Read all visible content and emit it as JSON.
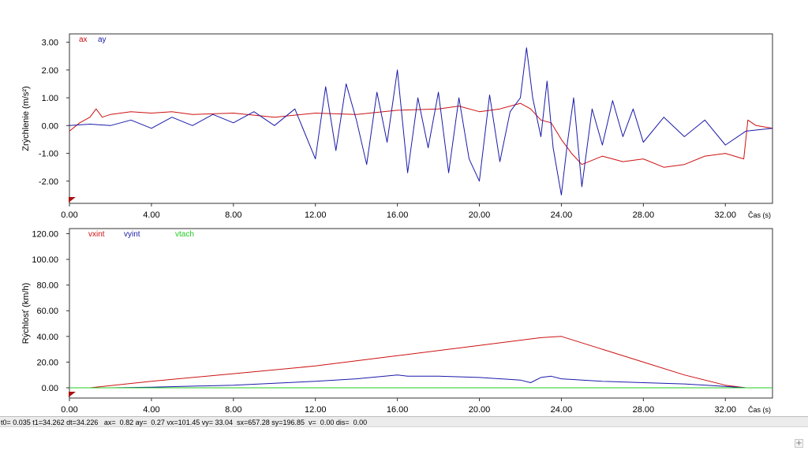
{
  "chart_data": [
    {
      "type": "line",
      "ylabel": "Zrýchlenie  (m/s²)",
      "xlabel": "Čas (s)",
      "xlim": [
        0,
        34.3
      ],
      "ylim": [
        -2.8,
        3.3
      ],
      "xticks": [
        0,
        4,
        8,
        12,
        16,
        20,
        24,
        28,
        32
      ],
      "yticks": [
        -2,
        -1,
        0,
        1,
        2,
        3
      ],
      "xtick_labels": [
        "0.00",
        "4.00",
        "8.00",
        "12.00",
        "16.00",
        "20.00",
        "24.00",
        "28.00",
        "32.00"
      ],
      "ytick_labels": [
        "-2.00",
        "-1.00",
        "0.00",
        "1.00",
        "2.00",
        "3.00"
      ],
      "legend_position": "top-left",
      "series": [
        {
          "name": "ax",
          "color": "#cc1111",
          "x": [
            0,
            0.5,
            1,
            1.3,
            1.6,
            2,
            3,
            4,
            5,
            6,
            8,
            10,
            12,
            14,
            16,
            18,
            19,
            20,
            21,
            22,
            22.5,
            23,
            23.5,
            24,
            24.5,
            25,
            26,
            27,
            28,
            29,
            30,
            31,
            32,
            32.9,
            33.1,
            33.5,
            34.3
          ],
          "y": [
            -0.2,
            0.1,
            0.3,
            0.6,
            0.3,
            0.4,
            0.5,
            0.45,
            0.5,
            0.4,
            0.45,
            0.3,
            0.45,
            0.4,
            0.55,
            0.6,
            0.7,
            0.5,
            0.6,
            0.8,
            0.6,
            0.2,
            0.1,
            -0.5,
            -1.0,
            -1.4,
            -1.1,
            -1.3,
            -1.2,
            -1.5,
            -1.4,
            -1.1,
            -1.0,
            -1.2,
            0.2,
            0.0,
            -0.1
          ]
        },
        {
          "name": "ay",
          "color": "#1a1aaa",
          "x": [
            0,
            1,
            2,
            3,
            4,
            5,
            6,
            7,
            8,
            9,
            10,
            11,
            12,
            12.5,
            13,
            13.5,
            14,
            14.5,
            15,
            15.5,
            16,
            16.5,
            17,
            17.5,
            18,
            18.5,
            19,
            19.5,
            20,
            20.5,
            21,
            21.5,
            22,
            22.3,
            22.6,
            23,
            23.3,
            23.6,
            24,
            24.3,
            24.6,
            25,
            25.5,
            26,
            26.5,
            27,
            27.5,
            28,
            29,
            30,
            31,
            32,
            33,
            34.3
          ],
          "y": [
            0.0,
            0.05,
            0.0,
            0.2,
            -0.1,
            0.3,
            0.0,
            0.4,
            0.1,
            0.5,
            0.0,
            0.6,
            -1.2,
            1.4,
            -0.9,
            1.5,
            0.2,
            -1.4,
            1.2,
            -0.6,
            2.0,
            -1.7,
            1.0,
            -0.8,
            1.2,
            -1.7,
            1.0,
            -1.2,
            -2.0,
            1.1,
            -1.3,
            0.5,
            1.0,
            2.8,
            1.0,
            -0.4,
            1.6,
            -0.8,
            -2.5,
            -0.6,
            1.0,
            -2.2,
            0.6,
            -0.7,
            0.9,
            -0.4,
            0.6,
            -0.6,
            0.3,
            -0.4,
            0.2,
            -0.7,
            -0.2,
            -0.1
          ]
        }
      ]
    },
    {
      "type": "line",
      "ylabel": "Rýchlosť (km/h)",
      "xlabel": "Čas (s)",
      "xlim": [
        0,
        34.3
      ],
      "ylim": [
        -8,
        124
      ],
      "xticks": [
        0,
        4,
        8,
        12,
        16,
        20,
        24,
        28,
        32
      ],
      "yticks": [
        0,
        20,
        40,
        60,
        80,
        100,
        120
      ],
      "xtick_labels": [
        "0.00",
        "4.00",
        "8.00",
        "12.00",
        "16.00",
        "20.00",
        "24.00",
        "28.00",
        "32.00"
      ],
      "ytick_labels": [
        "0.00",
        "20.00",
        "40.00",
        "60.00",
        "80.00",
        "100.00",
        "120.00"
      ],
      "legend_position": "top-left",
      "series": [
        {
          "name": "vxint",
          "color": "#cc1111",
          "x": [
            0,
            1,
            4,
            8,
            12,
            16,
            20,
            23,
            24,
            26,
            28,
            30,
            32,
            33,
            34.3
          ],
          "y": [
            0,
            0,
            5,
            11,
            17,
            25,
            33,
            39,
            40,
            30,
            20,
            10,
            2,
            0,
            0
          ]
        },
        {
          "name": "vyint",
          "color": "#1a1aaa",
          "x": [
            0,
            2,
            4,
            8,
            12,
            14,
            16,
            16.5,
            18,
            20,
            22,
            22.5,
            23,
            23.5,
            24,
            26,
            28,
            30,
            32,
            33,
            34.3
          ],
          "y": [
            0,
            0,
            0.5,
            2,
            5,
            7,
            10,
            9,
            9,
            8,
            6,
            4,
            8,
            9,
            7,
            5,
            4,
            3,
            1,
            0,
            0
          ]
        },
        {
          "name": "vtach",
          "color": "#22cc22",
          "x": [
            0,
            34.3
          ],
          "y": [
            0,
            0
          ]
        }
      ]
    }
  ],
  "status_bar": {
    "text": "t0= 0.035 t1=34.262 dt=34.226   ax=  0.82 ay=  0.27 vx=101.45 vy= 33.04  sx=657.28 sy=196.85  v=  0.00 dis=  0.00"
  },
  "corner_button": {
    "label": "+"
  }
}
